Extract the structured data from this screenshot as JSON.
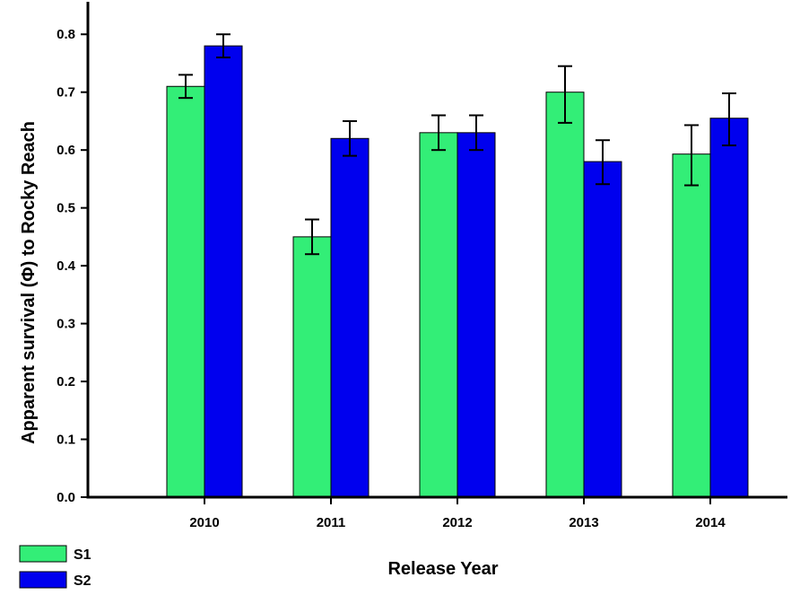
{
  "chart_data": {
    "type": "bar",
    "title": "",
    "xlabel": "Release Year",
    "ylabel": "Apparent survival (Φ) to Rocky Reach",
    "categories": [
      "2010",
      "2011",
      "2012",
      "2013",
      "2014"
    ],
    "ylim": [
      0,
      0.85
    ],
    "yticks": [
      "0.0",
      "0.1",
      "0.2",
      "0.3",
      "0.4",
      "0.5",
      "0.6",
      "0.7",
      "0.8"
    ],
    "grid": false,
    "legend_position": "bottom-left",
    "series": [
      {
        "name": "S1",
        "color": "#33ee77",
        "values": [
          0.71,
          0.45,
          0.63,
          0.7,
          0.593
        ],
        "err_low": [
          0.69,
          0.42,
          0.6,
          0.647,
          0.539
        ],
        "err_high": [
          0.73,
          0.48,
          0.66,
          0.745,
          0.643
        ]
      },
      {
        "name": "S2",
        "color": "#0000ee",
        "values": [
          0.78,
          0.62,
          0.63,
          0.58,
          0.655
        ],
        "err_low": [
          0.76,
          0.59,
          0.6,
          0.541,
          0.608
        ],
        "err_high": [
          0.8,
          0.65,
          0.66,
          0.617,
          0.698
        ]
      }
    ]
  }
}
